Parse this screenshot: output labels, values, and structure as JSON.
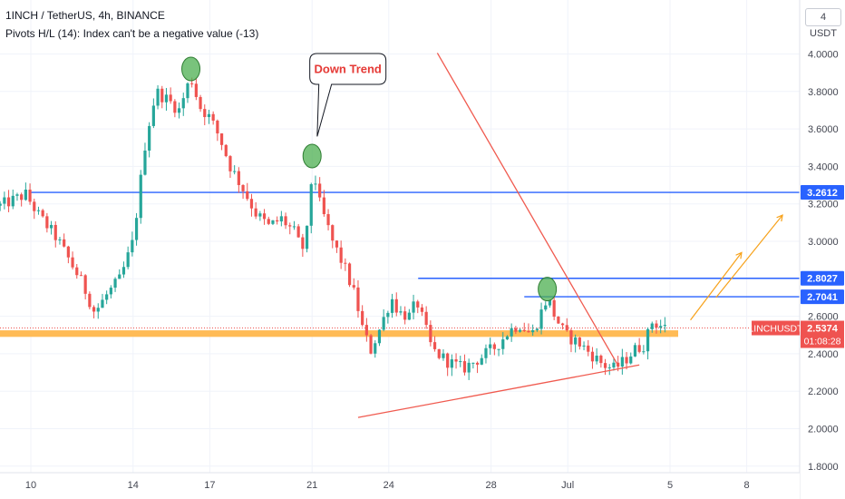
{
  "header": {
    "title": "1INCH / TetherUS, 4h, BINANCE",
    "indicator": "Pivots H/L (14): Index can't be a negative value (-13)",
    "unit": "4 USDT"
  },
  "annotation": {
    "text": "Down Trend"
  },
  "colors": {
    "up": "#26a69a",
    "down": "#ef5350",
    "trendline": "#f05a4f",
    "level": "#2962ff",
    "support_band": "#ffb74d",
    "arrow": "#f7a21b",
    "pivot": "#4caf50",
    "grid": "#f0f3fa"
  },
  "chart_data": {
    "type": "candlestick",
    "symbol": "1INCHUSDT",
    "last_price": "2.5374",
    "countdown": "01:08:28",
    "y_ticks": [
      "4.0000",
      "3.8000",
      "3.6000",
      "3.4000",
      "3.2000",
      "3.0000",
      "2.8000",
      "2.6000",
      "2.4000",
      "2.2000",
      "2.0000",
      "1.8000"
    ],
    "ylim": [
      1.79,
      4.06
    ],
    "x_ticks": [
      {
        "label": "10",
        "d": 0
      },
      {
        "label": "14",
        "d": 4
      },
      {
        "label": "17",
        "d": 7
      },
      {
        "label": "21",
        "d": 11
      },
      {
        "label": "24",
        "d": 14
      },
      {
        "label": "28",
        "d": 18
      },
      {
        "label": "Jul",
        "d": 21
      },
      {
        "label": "5",
        "d": 25
      },
      {
        "label": "8",
        "d": 28
      }
    ],
    "levels": [
      {
        "price": 3.2612,
        "label": "3.2612",
        "from_d": 0
      },
      {
        "price": 2.8027,
        "label": "2.8027",
        "from_d": 15.15
      },
      {
        "price": 2.7041,
        "label": "2.7041",
        "from_d": 19.3
      }
    ],
    "support_zone": {
      "from": 2.49,
      "to": 2.525
    },
    "trendlines": [
      {
        "from": [
          15.9,
          4.005
        ],
        "to": [
          23.0,
          2.33
        ]
      },
      {
        "from": [
          12.8,
          2.06
        ],
        "to": [
          23.8,
          2.34
        ]
      }
    ],
    "projection_arrows": [
      {
        "from": [
          25.8,
          2.58
        ],
        "to": [
          27.8,
          2.94
        ]
      },
      {
        "from": [
          26.8,
          2.7
        ],
        "to": [
          29.4,
          3.14
        ]
      }
    ],
    "pivot_markers": [
      {
        "d": 6.26,
        "price": 3.92
      },
      {
        "d": 11.0,
        "price": 3.455
      },
      {
        "d": 20.2,
        "price": 2.745
      }
    ],
    "callout": {
      "d": 12.4,
      "price": 3.92,
      "target_d": 11.2,
      "target_price": 3.56
    },
    "key_points": [
      [
        -1.2,
        3.19
      ],
      [
        -0.2,
        3.25
      ],
      [
        0.3,
        3.14
      ],
      [
        1.0,
        3.02
      ],
      [
        2.0,
        2.78
      ],
      [
        2.5,
        2.62
      ],
      [
        3.0,
        2.72
      ],
      [
        3.5,
        2.8
      ],
      [
        4.0,
        3.0
      ],
      [
        4.2,
        3.22
      ],
      [
        4.5,
        3.55
      ],
      [
        4.9,
        3.8
      ],
      [
        5.4,
        3.75
      ],
      [
        5.8,
        3.7
      ],
      [
        6.26,
        3.88
      ],
      [
        6.6,
        3.72
      ],
      [
        7.0,
        3.66
      ],
      [
        7.4,
        3.55
      ],
      [
        7.8,
        3.4
      ],
      [
        8.3,
        3.28
      ],
      [
        8.8,
        3.15
      ],
      [
        9.3,
        3.08
      ],
      [
        9.8,
        3.12
      ],
      [
        10.3,
        3.05
      ],
      [
        10.6,
        2.95
      ],
      [
        10.9,
        3.1
      ],
      [
        11.0,
        3.42
      ],
      [
        11.3,
        3.2
      ],
      [
        11.8,
        3.0
      ],
      [
        12.3,
        2.85
      ],
      [
        12.7,
        2.7
      ],
      [
        13.0,
        2.52
      ],
      [
        13.3,
        2.42
      ],
      [
        13.7,
        2.55
      ],
      [
        14.1,
        2.7
      ],
      [
        14.4,
        2.62
      ],
      [
        14.8,
        2.6
      ],
      [
        15.1,
        2.68
      ],
      [
        15.4,
        2.55
      ],
      [
        15.7,
        2.42
      ],
      [
        16.3,
        2.36
      ],
      [
        16.9,
        2.32
      ],
      [
        17.6,
        2.38
      ],
      [
        18.2,
        2.44
      ],
      [
        18.7,
        2.52
      ],
      [
        19.1,
        2.56
      ],
      [
        19.6,
        2.5
      ],
      [
        20.2,
        2.7
      ],
      [
        20.5,
        2.6
      ],
      [
        20.9,
        2.5
      ],
      [
        21.5,
        2.45
      ],
      [
        21.9,
        2.4
      ],
      [
        22.4,
        2.34
      ],
      [
        22.8,
        2.32
      ],
      [
        23.2,
        2.36
      ],
      [
        23.6,
        2.42
      ],
      [
        24.0,
        2.45
      ],
      [
        24.3,
        2.57
      ],
      [
        24.8,
        2.54
      ]
    ]
  }
}
